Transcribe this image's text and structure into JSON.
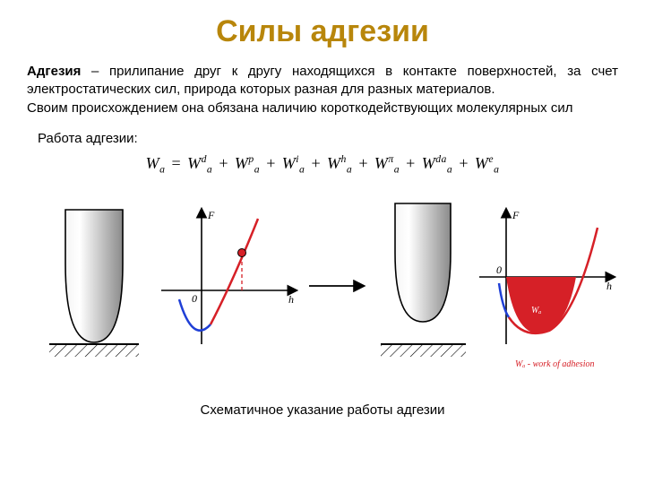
{
  "title": {
    "text": "Силы адгезии",
    "color": "#b8860b",
    "fontsize": 34
  },
  "paragraph": {
    "lead": "Адгезия",
    "rest": " – прилипание друг к другу находящихся в контакте поверхностей, за счет электростатических сил, природа которых разная для разных материалов.",
    "line2": "Своим происхождением она обязана наличию короткодействующих молекулярных сил"
  },
  "work_label": "Работа адгезии:",
  "formula": {
    "lhs_base": "W",
    "lhs_sub": "a",
    "terms": [
      {
        "sup": "d",
        "sub": "a"
      },
      {
        "sup": "p",
        "sub": "a"
      },
      {
        "sup": "i",
        "sub": "a"
      },
      {
        "sup": "h",
        "sub": "a"
      },
      {
        "sup": "π",
        "sub": "a"
      },
      {
        "sup": "da",
        "sub": "a"
      },
      {
        "sup": "e",
        "sub": "a"
      }
    ],
    "base": "W",
    "op": "+"
  },
  "caption": "Схематичное указание работы адгезии",
  "diagram": {
    "arrow_color": "#000000",
    "probe": {
      "fill_light": "#f5f5f5",
      "fill_dark": "#9e9e9e",
      "stroke": "#000000"
    },
    "surface": {
      "stroke": "#000000",
      "hatch": "#000000"
    },
    "curve": {
      "blue": "#1f3fd6",
      "red": "#d62027",
      "marker_fill": "#d62027",
      "dash": "#d62027",
      "fill_area": "#d62027"
    },
    "axis": {
      "color": "#000000",
      "F": "F",
      "h": "h",
      "zero": "0"
    },
    "label_Wa": "Wₐ",
    "footnote": "Wₐ - work of adhesion",
    "footnote_color": "#d62027",
    "left_chart": {
      "type": "line",
      "xlim": [
        -0.6,
        1.4
      ],
      "ylim": [
        -1,
        1.3
      ],
      "marker_h": 0.65
    },
    "right_chart": {
      "type": "area",
      "xlim": [
        -0.3,
        1.6
      ],
      "ylim": [
        -1,
        1.2
      ],
      "fill_to_h": 1.05
    }
  }
}
